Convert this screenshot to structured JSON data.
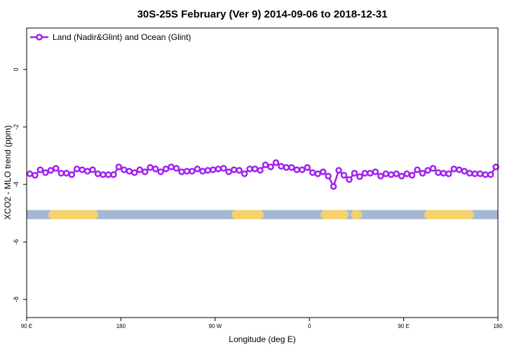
{
  "chart_data": {
    "type": "line",
    "title": "30S-25S February (Ver 9)   2014-09-06 to 2018-12-31",
    "x_label": "Longitude (deg E)",
    "y_label": "XCO2 - MLO trend (ppm)",
    "x": [
      93,
      98,
      103,
      108,
      113,
      118,
      123,
      128,
      133,
      138,
      143,
      148,
      153,
      158,
      163,
      168,
      173,
      178,
      183,
      188,
      193,
      198,
      203,
      208,
      213,
      218,
      223,
      228,
      233,
      238,
      243,
      248,
      253,
      258,
      263,
      268,
      273,
      278,
      283,
      288,
      293,
      298,
      303,
      308,
      313,
      318,
      323,
      328,
      333,
      338,
      343,
      348,
      353,
      358,
      363,
      368,
      373,
      378,
      383,
      388,
      393,
      398,
      403,
      408,
      413,
      418,
      423,
      428,
      433,
      438,
      443,
      448,
      453,
      458,
      463,
      468,
      473,
      478,
      483,
      488,
      493,
      498,
      503,
      508,
      513,
      518,
      523,
      528,
      533,
      538
    ],
    "series": [
      {
        "name": "Land (Nadir&Glint) and Ocean (Glint)",
        "color": "#a020f0",
        "values": [
          -3.63,
          -3.68,
          -3.49,
          -3.59,
          -3.51,
          -3.44,
          -3.61,
          -3.61,
          -3.66,
          -3.46,
          -3.49,
          -3.54,
          -3.49,
          -3.63,
          -3.66,
          -3.66,
          -3.66,
          -3.39,
          -3.49,
          -3.54,
          -3.59,
          -3.49,
          -3.56,
          -3.41,
          -3.46,
          -3.56,
          -3.46,
          -3.39,
          -3.44,
          -3.56,
          -3.54,
          -3.54,
          -3.46,
          -3.54,
          -3.51,
          -3.49,
          -3.46,
          -3.44,
          -3.56,
          -3.49,
          -3.51,
          -3.63,
          -3.46,
          -3.46,
          -3.51,
          -3.32,
          -3.39,
          -3.24,
          -3.37,
          -3.41,
          -3.41,
          -3.49,
          -3.49,
          -3.41,
          -3.59,
          -3.63,
          -3.56,
          -3.71,
          -4.07,
          -3.51,
          -3.68,
          -3.83,
          -3.61,
          -3.73,
          -3.61,
          -3.61,
          -3.56,
          -3.71,
          -3.63,
          -3.66,
          -3.63,
          -3.71,
          -3.63,
          -3.68,
          -3.49,
          -3.61,
          -3.51,
          -3.44,
          -3.59,
          -3.61,
          -3.63,
          -3.46,
          -3.49,
          -3.54,
          -3.61,
          -3.63,
          -3.63,
          -3.66,
          -3.66,
          -3.39
        ]
      }
    ],
    "band": {
      "y": -5.05,
      "ocean_color": "#a3b7d3",
      "land_color": "#f5d26b",
      "land": [
        [
          115,
          154
        ],
        [
          290,
          312
        ],
        [
          375,
          393
        ],
        [
          404,
          406
        ],
        [
          474,
          513
        ]
      ]
    },
    "xlim": [
      90,
      540
    ],
    "ylim": [
      -8.63,
      1.44
    ],
    "xticks": [
      {
        "value": 90,
        "label": "90 E"
      },
      180,
      {
        "value": 270,
        "label": "90 W"
      },
      {
        "value": 360,
        "label": "0"
      },
      {
        "value": 450,
        "label": "90 E"
      },
      {
        "value": 540,
        "label": "180"
      }
    ],
    "yticks": [
      0,
      -2,
      -4,
      -6,
      -8
    ],
    "legend": "top-left"
  }
}
